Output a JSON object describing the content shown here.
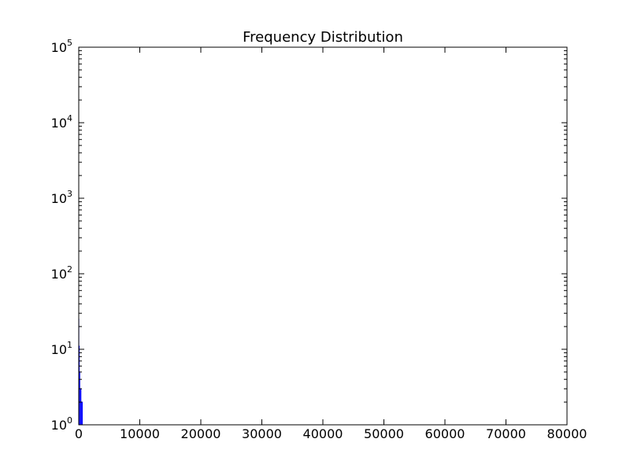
{
  "chart_data": {
    "type": "bar",
    "title": "Frequency Distribution",
    "xlabel": "",
    "ylabel": "",
    "xlim": [
      0,
      80000
    ],
    "ylim": [
      1,
      100000
    ],
    "y_scale": "log",
    "grid": false,
    "legend": "none",
    "bar_color": "#0000ff",
    "x_ticks": [
      0,
      10000,
      20000,
      30000,
      40000,
      50000,
      60000,
      70000,
      80000
    ],
    "x_tick_labels": [
      "0",
      "10000",
      "20000",
      "30000",
      "40000",
      "50000",
      "60000",
      "70000",
      "80000"
    ],
    "y_ticks": [
      {
        "value": 1,
        "base": "10",
        "exp": "0"
      },
      {
        "value": 10,
        "base": "10",
        "exp": "1"
      },
      {
        "value": 100,
        "base": "10",
        "exp": "2"
      },
      {
        "value": 1000,
        "base": "10",
        "exp": "3"
      },
      {
        "value": 10000,
        "base": "10",
        "exp": "4"
      },
      {
        "value": 100000,
        "base": "10",
        "exp": "5"
      }
    ],
    "bars": [
      {
        "x0": 0,
        "x1": 60,
        "value": 25
      },
      {
        "x0": 60,
        "x1": 150,
        "value": 11
      },
      {
        "x0": 150,
        "x1": 250,
        "value": 5
      },
      {
        "x0": 250,
        "x1": 420,
        "value": 3
      },
      {
        "x0": 420,
        "x1": 650,
        "value": 2
      },
      {
        "x0": 650,
        "x1": 72800,
        "value": 1
      }
    ]
  }
}
